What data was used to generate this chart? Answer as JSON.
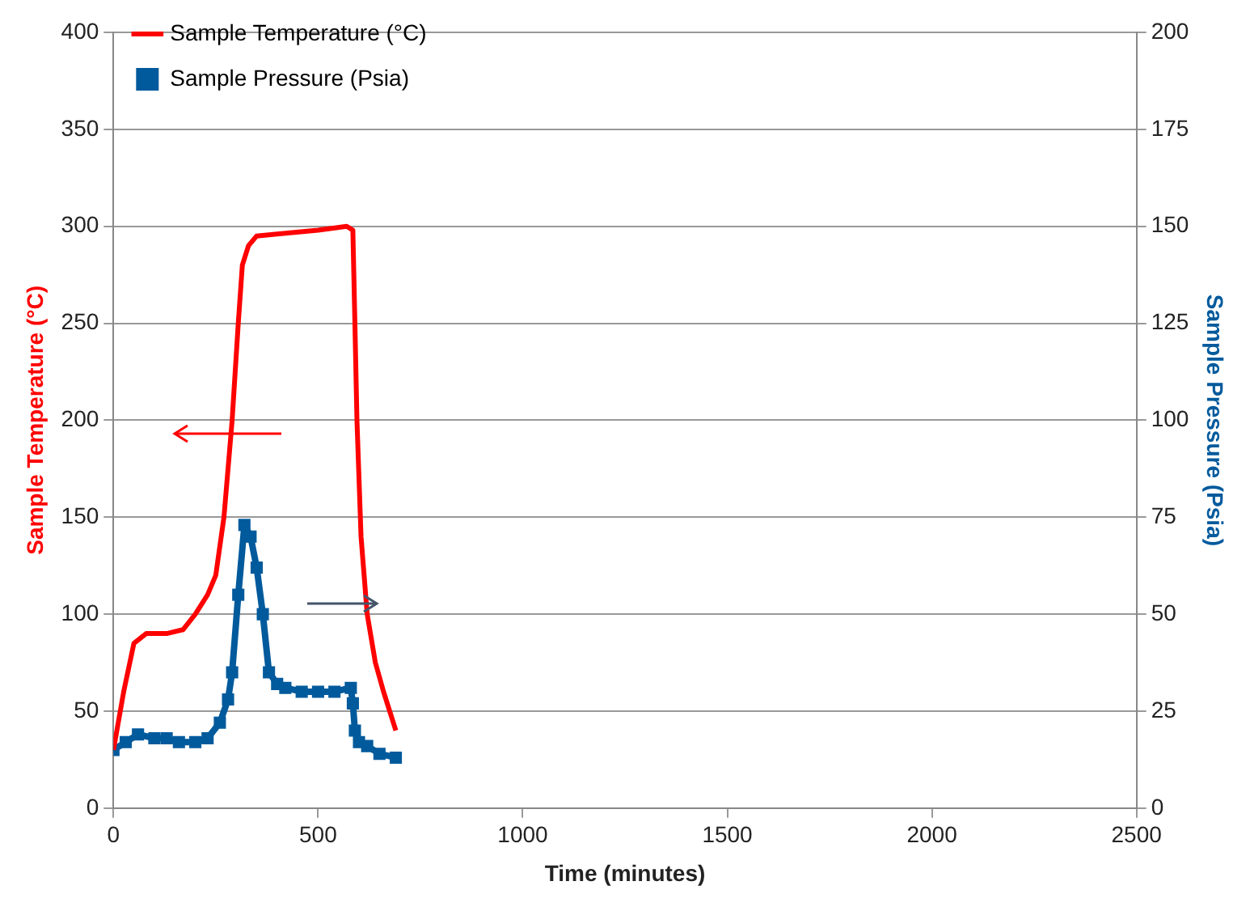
{
  "chart_data": {
    "type": "line",
    "xlabel": "Time (minutes)",
    "ylabel": "Sample Temperature (°C)",
    "y2label": "Sample Pressure (Psia)",
    "xlim": [
      0,
      2500
    ],
    "xticks": [
      0,
      500,
      1000,
      1500,
      2000,
      2500
    ],
    "ylim": [
      0,
      400
    ],
    "yticks": [
      0,
      50,
      100,
      150,
      200,
      250,
      300,
      350,
      400
    ],
    "y2lim": [
      0,
      200
    ],
    "y2ticks": [
      0,
      25,
      50,
      75,
      100,
      125,
      150,
      175,
      200
    ],
    "grid": "y",
    "legend": "top left",
    "series": [
      {
        "name": "Sample Temperature (°C)",
        "color": "#ff0000",
        "marker": "none",
        "axis": "y",
        "x": [
          0,
          25,
          50,
          80,
          130,
          170,
          200,
          230,
          250,
          270,
          290,
          305,
          315,
          330,
          350,
          400,
          500,
          570,
          585,
          590,
          595,
          605,
          620,
          640,
          660,
          690
        ],
        "values": [
          30,
          60,
          85,
          90,
          90,
          92,
          100,
          110,
          120,
          150,
          200,
          250,
          280,
          290,
          295,
          296,
          298,
          300,
          298,
          250,
          200,
          140,
          100,
          75,
          60,
          40
        ]
      },
      {
        "name": "Sample Pressure (Psia)",
        "color": "#005a9c",
        "marker": "square",
        "axis": "y2",
        "x": [
          0,
          30,
          60,
          100,
          130,
          160,
          200,
          230,
          260,
          280,
          290,
          305,
          320,
          335,
          350,
          365,
          380,
          400,
          420,
          460,
          500,
          540,
          580,
          585,
          590,
          600,
          620,
          650,
          690
        ],
        "values": [
          15,
          17,
          19,
          18,
          18,
          17,
          17,
          18,
          22,
          28,
          35,
          55,
          73,
          70,
          62,
          50,
          35,
          32,
          31,
          30,
          30,
          30,
          31,
          27,
          20,
          17,
          16,
          14,
          13
        ]
      }
    ]
  }
}
